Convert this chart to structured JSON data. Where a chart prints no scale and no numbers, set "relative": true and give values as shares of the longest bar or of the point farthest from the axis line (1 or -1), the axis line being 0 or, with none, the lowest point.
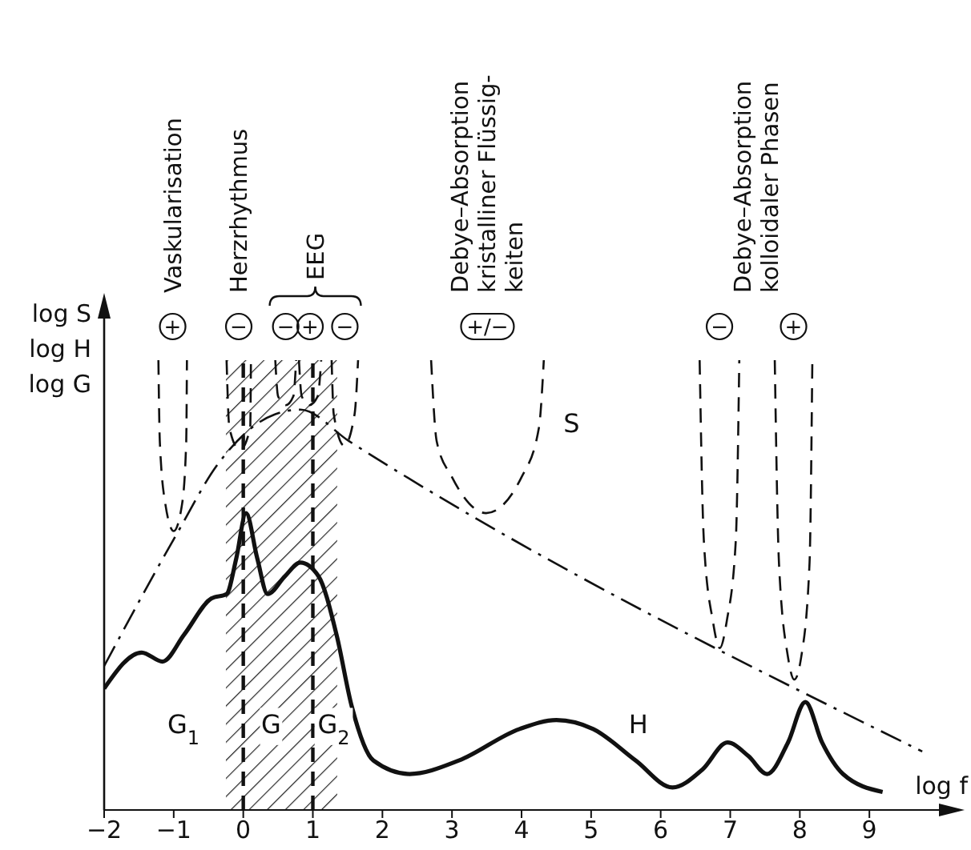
{
  "chart_data": {
    "type": "line",
    "relative": true,
    "xlabel": "log f",
    "ylabel": "log S\nlog H\nlog G",
    "xlim": [
      -2,
      10
    ],
    "xticks": [
      -2,
      -1,
      0,
      1,
      2,
      3,
      4,
      5,
      6,
      7,
      8,
      9
    ],
    "series": [
      {
        "color": "#111111",
        "line_style": "solid",
        "x": [
          -2,
          -1.46,
          -1.16,
          -0.85,
          -0.46,
          -0.24,
          -0.1,
          0.04,
          0.2,
          0.35,
          0.6,
          0.82,
          1.08,
          1.34,
          1.56,
          1.87,
          2.39,
          3.1,
          3.97,
          4.5,
          5.03,
          5.64,
          6.17,
          6.6,
          6.96,
          7.26,
          7.53,
          7.83,
          8.08,
          8.32,
          8.62,
          9.19
        ],
        "values": [
          0.27,
          0.35,
          0.33,
          0.39,
          0.47,
          0.48,
          0.56,
          0.66,
          0.56,
          0.48,
          0.52,
          0.55,
          0.52,
          0.39,
          0.23,
          0.11,
          0.08,
          0.11,
          0.18,
          0.2,
          0.18,
          0.11,
          0.05,
          0.09,
          0.15,
          0.12,
          0.08,
          0.15,
          0.24,
          0.15,
          0.08,
          0.04
        ]
      },
      {
        "color": "#111111",
        "line_style": "dashdot",
        "x": [
          -2,
          -0.97,
          -0.36,
          0.46,
          0.82,
          1.52,
          9.76
        ],
        "values": [
          0.32,
          0.61,
          0.77,
          0.88,
          0.89,
          0.82,
          0.13
        ]
      },
      {
        "color": "#111111",
        "line_style": "dashed",
        "x": [
          -1.22,
          -1.2,
          -1.12,
          -1.0,
          -0.88,
          -0.82,
          -0.81
        ],
        "values": [
          1,
          0.82,
          0.68,
          0.62,
          0.68,
          0.82,
          1
        ]
      },
      {
        "color": "#111111",
        "line_style": "dashed",
        "x": [
          -0.24,
          -0.2,
          -0.05,
          0.1,
          0.11
        ],
        "values": [
          1,
          0.85,
          0.8,
          0.85,
          1
        ]
      },
      {
        "color": "#111111",
        "line_style": "dashed",
        "x": [
          0.46,
          0.5,
          0.61,
          0.72,
          0.76
        ],
        "values": [
          1,
          0.92,
          0.9,
          0.92,
          1
        ]
      },
      {
        "color": "#111111",
        "line_style": "dashed",
        "x": [
          0.8,
          0.84,
          0.95,
          1.07,
          1.12
        ],
        "values": [
          1,
          0.92,
          0.9,
          0.92,
          1
        ]
      },
      {
        "color": "#111111",
        "line_style": "dashed",
        "x": [
          1.27,
          1.3,
          1.45,
          1.6,
          1.65
        ],
        "values": [
          1,
          0.88,
          0.81,
          0.88,
          1
        ]
      },
      {
        "color": "#111111",
        "line_style": "dashed",
        "x": [
          2.7,
          2.78,
          3.0,
          3.49,
          4.0,
          4.25,
          4.32
        ],
        "values": [
          1,
          0.82,
          0.74,
          0.66,
          0.74,
          0.85,
          1
        ]
      },
      {
        "color": "#111111",
        "line_style": "dashed",
        "x": [
          6.56,
          6.62,
          6.75,
          6.85,
          6.95,
          7.08,
          7.13
        ],
        "values": [
          1,
          0.6,
          0.42,
          0.36,
          0.42,
          0.6,
          1
        ]
      },
      {
        "color": "#111111",
        "line_style": "dashed",
        "x": [
          7.64,
          7.7,
          7.83,
          7.92,
          8.02,
          8.14,
          8.18
        ],
        "values": [
          1,
          0.55,
          0.34,
          0.29,
          0.34,
          0.55,
          1
        ]
      }
    ],
    "bands": [
      {
        "axis": "x",
        "from": -0.25,
        "to": 1.35
      }
    ],
    "ref_lines": [
      {
        "axis": "x",
        "value": 0,
        "line_style": "dashed"
      },
      {
        "axis": "x",
        "value": 1,
        "line_style": "dashed"
      }
    ],
    "annotations": [
      "Vaskularisation",
      "Herzrhythmus",
      "EEG",
      "Debye–Absorption\nkristalliner Flüssig-\nkeiten",
      "Debye–Absorption\nkolloidaler Phasen",
      "+",
      "−",
      "−",
      "+",
      "−",
      "+/−",
      "−",
      "+",
      "G$_{1}$",
      "G",
      "G$_{2}$",
      "H",
      "S"
    ]
  }
}
